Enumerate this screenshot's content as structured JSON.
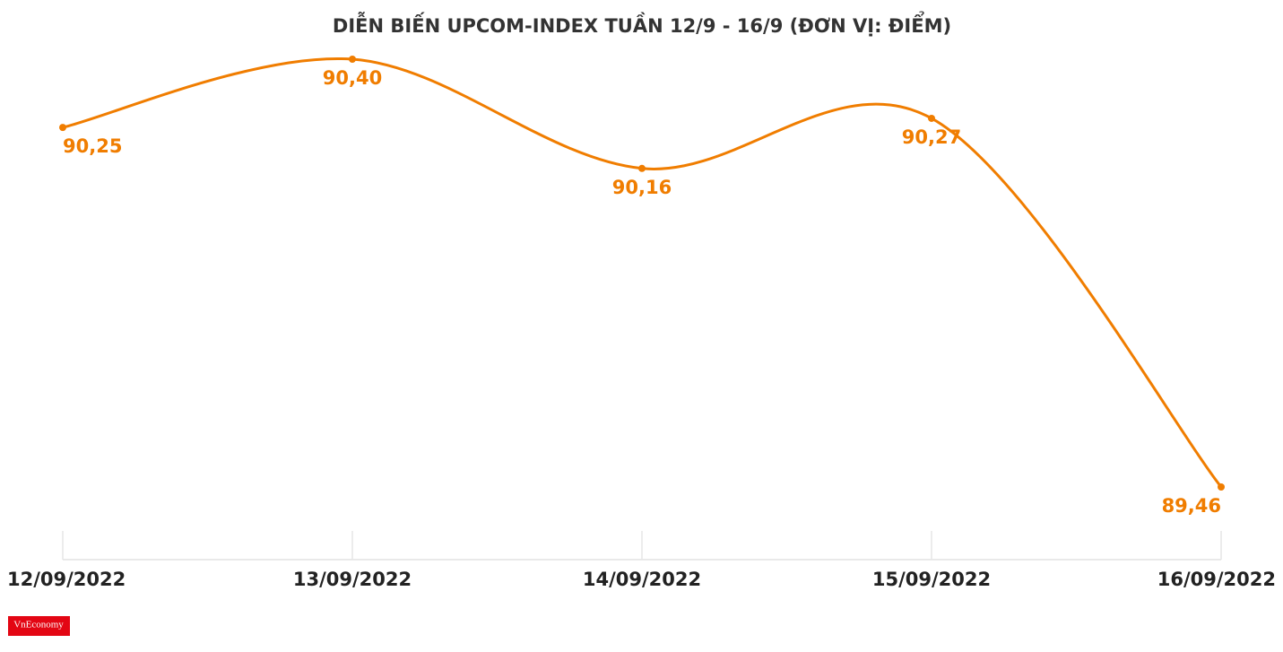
{
  "chart_data": {
    "type": "line",
    "title": "DIỄN BIẾN UPCOM-INDEX TUẦN 12/9 - 16/9 (ĐƠN VỊ: ĐIỂM)",
    "categories": [
      "12/09/2022",
      "13/09/2022",
      "14/09/2022",
      "15/09/2022",
      "16/09/2022"
    ],
    "series": [
      {
        "name": "UPCOM-Index",
        "color": "#f07d00",
        "values": [
          90.25,
          90.4,
          90.16,
          90.27,
          89.46
        ],
        "value_labels": [
          "90,25",
          "90,40",
          "90,16",
          "90,27",
          "89,46"
        ]
      }
    ],
    "smooth": true
  },
  "logo": "VnEconomy"
}
